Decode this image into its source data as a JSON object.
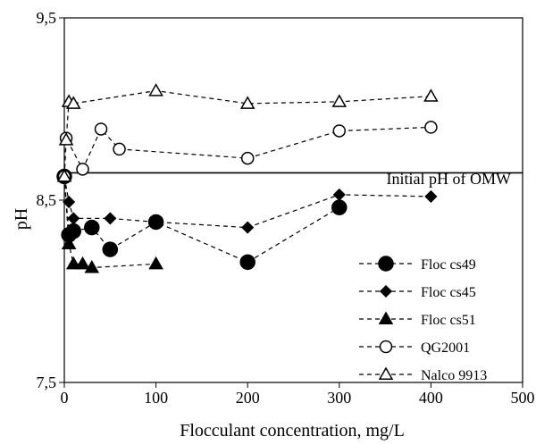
{
  "chart_data": {
    "type": "line",
    "xlabel": "Flocculant concentration, mg/L",
    "ylabel": "pH",
    "xlim": [
      0,
      500
    ],
    "ylim": [
      7.5,
      9.5
    ],
    "xticks": [
      0,
      100,
      200,
      300,
      400,
      500
    ],
    "yticks": [
      7.5,
      8.5,
      9.5
    ],
    "xtick_labels": [
      "0",
      "100",
      "200",
      "300",
      "400",
      "500"
    ],
    "ytick_labels": [
      "7,5",
      "8,5",
      "9,5"
    ],
    "grid": false,
    "legend_position": "lower-right",
    "reference_line": {
      "y": 8.65,
      "label": "Initial pH of OMW"
    },
    "series": [
      {
        "name": "Floc cs49",
        "marker": "circle-filled",
        "x": [
          0,
          5,
          10,
          30,
          50,
          100,
          200,
          300
        ],
        "y": [
          8.63,
          8.31,
          8.33,
          8.35,
          8.23,
          8.38,
          8.16,
          8.46
        ]
      },
      {
        "name": "Floc cs45",
        "marker": "diamond-filled",
        "x": [
          0,
          5,
          10,
          50,
          100,
          200,
          300,
          400
        ],
        "y": [
          8.63,
          8.49,
          8.4,
          8.4,
          8.38,
          8.35,
          8.53,
          8.52
        ]
      },
      {
        "name": "Floc cs51",
        "marker": "triangle-filled",
        "x": [
          0,
          5,
          10,
          20,
          30,
          100
        ],
        "y": [
          8.63,
          8.26,
          8.15,
          8.15,
          8.13,
          8.15
        ]
      },
      {
        "name": "QG2001",
        "marker": "circle-open",
        "x": [
          0,
          2,
          20,
          40,
          60,
          200,
          300,
          400
        ],
        "y": [
          8.63,
          8.84,
          8.67,
          8.89,
          8.78,
          8.73,
          8.88,
          8.9
        ]
      },
      {
        "name": "Nalco 9913",
        "marker": "triangle-open",
        "x": [
          0,
          2,
          5,
          10,
          100,
          200,
          300,
          400
        ],
        "y": [
          8.63,
          8.83,
          9.04,
          9.03,
          9.1,
          9.03,
          9.04,
          9.07
        ]
      }
    ]
  }
}
